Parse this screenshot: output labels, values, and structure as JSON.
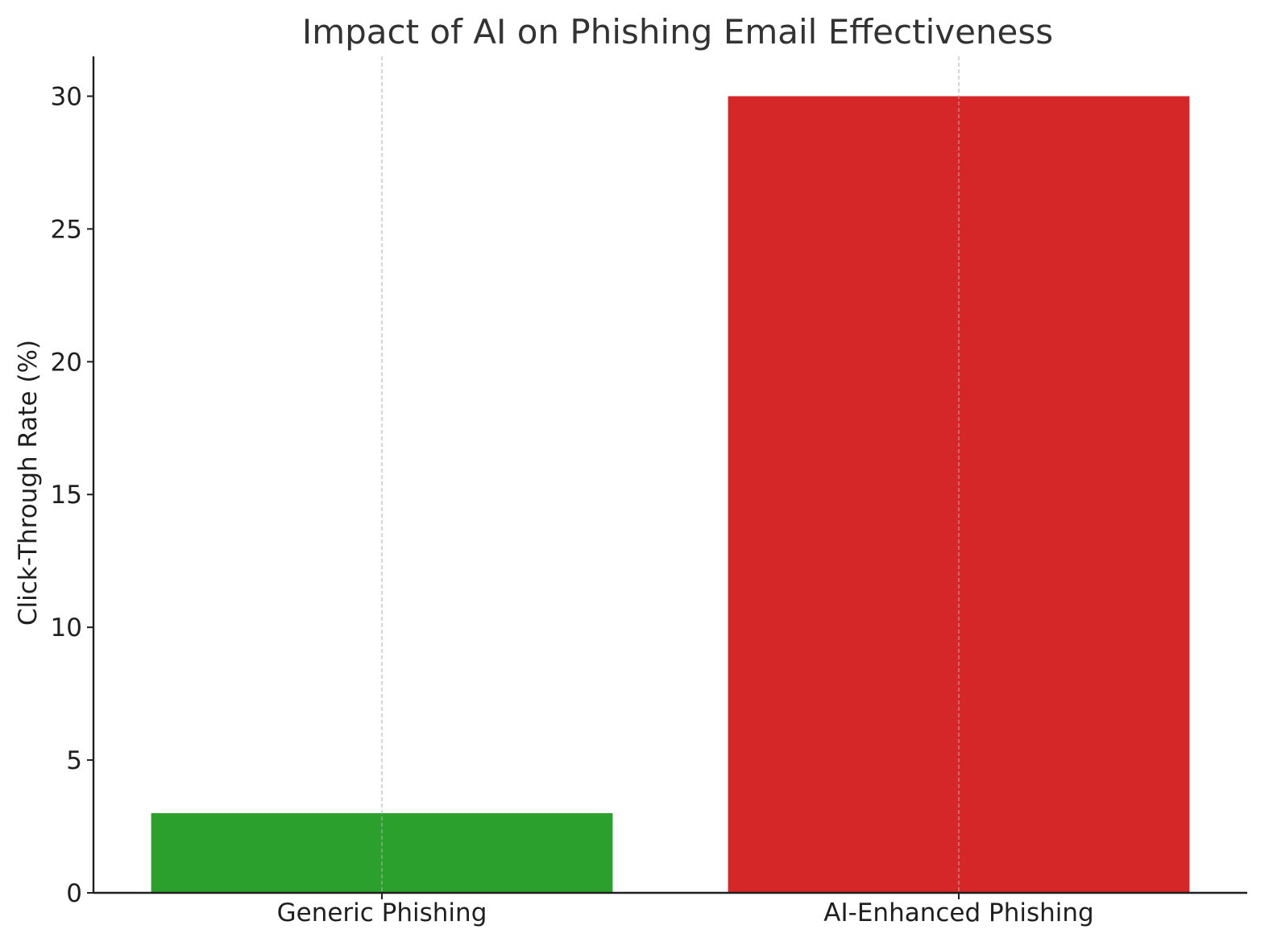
{
  "chart_data": {
    "type": "bar",
    "title": "Impact of AI on Phishing Email Effectiveness",
    "xlabel": "",
    "ylabel": "Click-Through Rate (%)",
    "categories": [
      "Generic Phishing",
      "AI-Enhanced Phishing"
    ],
    "values": [
      3,
      30
    ],
    "bar_colors": [
      "#2ca02c",
      "#d62728"
    ],
    "ylim": [
      0,
      31.5
    ],
    "yticks": [
      0,
      5,
      10,
      15,
      20,
      25,
      30
    ],
    "ytick_labels": [
      "0",
      "5",
      "10",
      "15",
      "20",
      "25",
      "30"
    ],
    "grid": "vertical-dashed",
    "legend": "none"
  }
}
